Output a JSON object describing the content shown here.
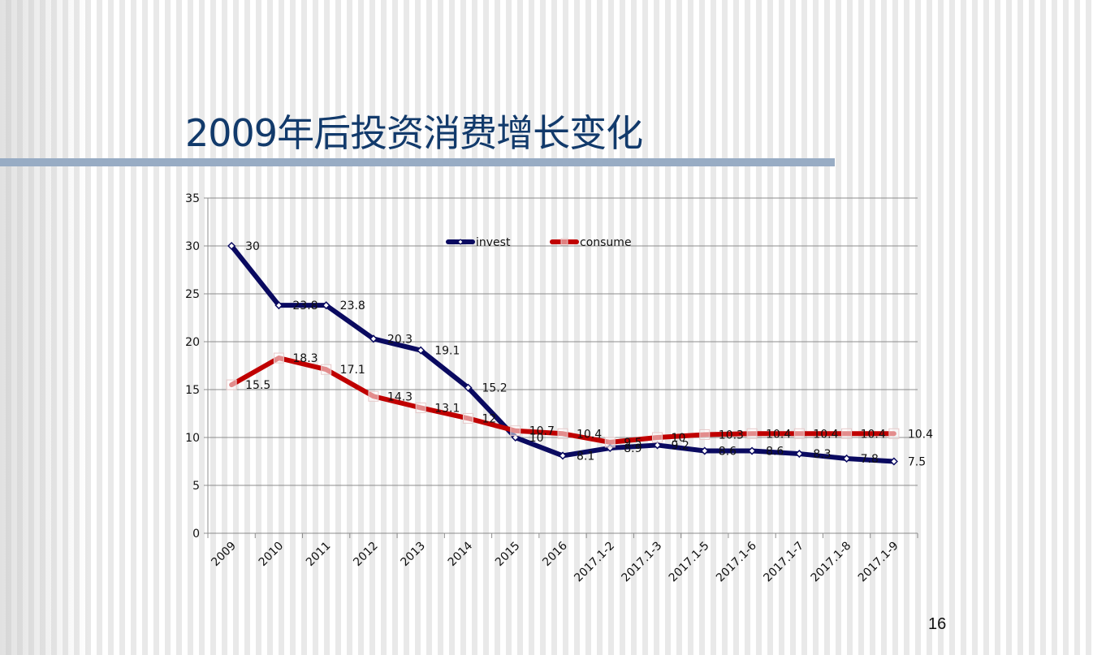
{
  "slide": {
    "title": "2009年后投资消费增长变化",
    "page_number": "16"
  },
  "colors": {
    "title": "#123a6b",
    "rule": "#98acc4",
    "invest": "#0a0a60",
    "consume": "#c00000",
    "grid": "#8c8c8c"
  },
  "chart_data": {
    "type": "line",
    "categories": [
      "2009",
      "2010",
      "2011",
      "2012",
      "2013",
      "2014",
      "2015",
      "2016",
      "2017.1-2",
      "2017.1-3",
      "2017.1-5",
      "2017.1-6",
      "2017.1-7",
      "2017.1-8",
      "2017.1-9"
    ],
    "series": [
      {
        "name": "invest",
        "color": "#0a0a60",
        "values": [
          30,
          23.8,
          23.8,
          20.3,
          19.1,
          15.2,
          10,
          8.1,
          8.9,
          9.2,
          8.6,
          8.6,
          8.3,
          7.8,
          7.5
        ],
        "labels": [
          "30",
          "23.8",
          "23.8",
          "20.3",
          "19.1",
          "15.2",
          "10",
          "8.1",
          "8.9",
          "9.2",
          "8.6",
          "8.6",
          "8.3",
          "7.8",
          "7.5"
        ]
      },
      {
        "name": "consume",
        "color": "#c00000",
        "values": [
          15.5,
          18.3,
          17.1,
          14.3,
          13.1,
          12,
          10.7,
          10.4,
          9.5,
          10,
          10.3,
          10.4,
          10.4,
          10.4,
          10.4
        ],
        "labels": [
          "15.5",
          "18.3",
          "17.1",
          "14.3",
          "13.1",
          "12",
          "10.7",
          "10.4",
          "9.5",
          "10",
          "10.3",
          "10.4",
          "10.4",
          "10.4",
          "10.4"
        ]
      }
    ],
    "ylim": [
      0,
      35
    ],
    "yticks": [
      "0",
      "5",
      "10",
      "15",
      "20",
      "25",
      "30",
      "35"
    ],
    "grid": true,
    "legend": "top-center"
  }
}
